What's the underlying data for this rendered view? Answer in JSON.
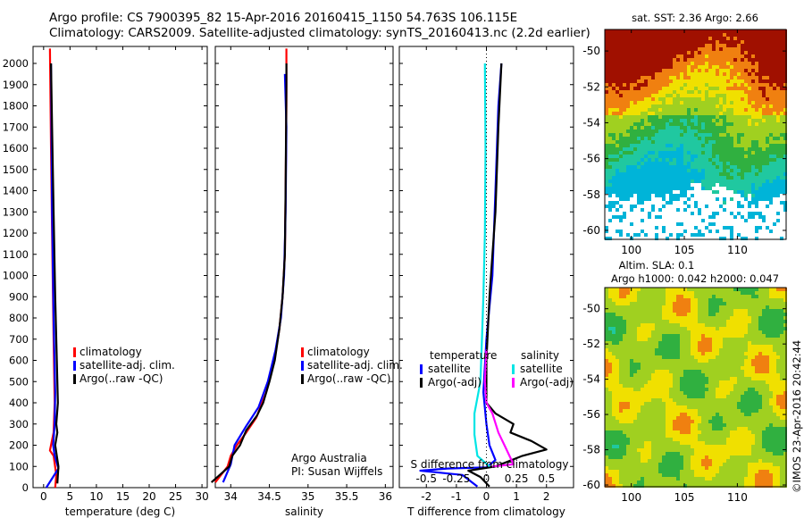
{
  "header": {
    "line1": "Argo profile: CS 7900395_82 15-Apr-2016 20160415_1150 54.763S 106.115E",
    "line2": "Climatology: CARS2009. Satellite-adjusted climatology: synTS_20160413.nc (2.2d earlier)"
  },
  "stamp": "©IMOS 23-Apr-2016 20:42:44",
  "colors": {
    "climatology": "#ff0000",
    "satellite": "#0000ff",
    "argo": "#000000",
    "satellite_s": "#00e5e5",
    "argo_s": "#ff00ff"
  },
  "chart_data": [
    {
      "type": "line",
      "xlabel": "temperature (deg C)",
      "xticks": [
        "0",
        "5",
        "10",
        "15",
        "20",
        "25",
        "30"
      ],
      "yticks": [
        "0",
        "100",
        "200",
        "300",
        "400",
        "500",
        "600",
        "700",
        "800",
        "900",
        "1000",
        "1100",
        "1200",
        "1300",
        "1400",
        "1500",
        "1600",
        "1700",
        "1800",
        "1900",
        "2000"
      ],
      "xlim": [
        -2,
        31
      ],
      "ylim": [
        2080,
        0
      ],
      "legend": [
        "climatology",
        "satellite-adj. clim.",
        "Argo(..raw -QC)"
      ],
      "series": [
        {
          "name": "climatology",
          "values": [
            [
              2.2,
              0
            ],
            [
              2.4,
              60
            ],
            [
              1.9,
              150
            ],
            [
              1.2,
              175
            ],
            [
              1.4,
              200
            ],
            [
              1.9,
              260
            ],
            [
              2.1,
              400
            ],
            [
              1.9,
              700
            ],
            [
              1.6,
              1200
            ],
            [
              1.4,
              1600
            ],
            [
              1.2,
              2070
            ]
          ]
        },
        {
          "name": "satellite-adj. clim.",
          "values": [
            [
              0.5,
              0
            ],
            [
              2.8,
              90
            ],
            [
              2.1,
              150
            ],
            [
              1.8,
              200
            ],
            [
              2.1,
              300
            ],
            [
              2.2,
              450
            ],
            [
              1.9,
              800
            ],
            [
              1.6,
              1300
            ],
            [
              1.4,
              2000
            ]
          ]
        },
        {
          "name": "Argo(..raw -QC)",
          "values": [
            [
              2.6,
              20
            ],
            [
              2.8,
              100
            ],
            [
              2.5,
              150
            ],
            [
              2.2,
              200
            ],
            [
              2.6,
              260
            ],
            [
              2.4,
              300
            ],
            [
              2.7,
              400
            ],
            [
              2.5,
              600
            ],
            [
              2.2,
              900
            ],
            [
              1.9,
              1300
            ],
            [
              1.6,
              1700
            ],
            [
              1.4,
              2000
            ]
          ]
        }
      ]
    },
    {
      "type": "line",
      "xlabel": "salinity",
      "xticks": [
        "34",
        "34.5",
        "35",
        "35.5",
        "36"
      ],
      "xlim": [
        33.8,
        36.1
      ],
      "ylim": [
        2080,
        0
      ],
      "legend": [
        "climatology",
        "satellite-adj. clim.",
        "Argo(..raw -QC)"
      ],
      "annotations": [
        "Argo Australia",
        "PI: Susan Wijffels"
      ],
      "series": [
        {
          "name": "climatology",
          "values": [
            [
              33.8,
              25
            ],
            [
              33.96,
              100
            ],
            [
              34.0,
              150
            ],
            [
              34.08,
              200
            ],
            [
              34.2,
              260
            ],
            [
              34.33,
              330
            ],
            [
              34.46,
              450
            ],
            [
              34.56,
              600
            ],
            [
              34.63,
              750
            ],
            [
              34.67,
              900
            ],
            [
              34.7,
              1100
            ],
            [
              34.71,
              1400
            ],
            [
              34.72,
              1800
            ],
            [
              34.72,
              2070
            ]
          ]
        },
        {
          "name": "satellite-adj. clim.",
          "values": [
            [
              33.9,
              25
            ],
            [
              34.0,
              110
            ],
            [
              34.05,
              200
            ],
            [
              34.2,
              290
            ],
            [
              34.36,
              380
            ],
            [
              34.48,
              500
            ],
            [
              34.58,
              650
            ],
            [
              34.65,
              800
            ],
            [
              34.69,
              1000
            ],
            [
              34.71,
              1300
            ],
            [
              34.72,
              1700
            ],
            [
              34.7,
              1950
            ]
          ]
        },
        {
          "name": "Argo(..raw -QC)",
          "values": [
            [
              33.75,
              25
            ],
            [
              33.98,
              100
            ],
            [
              34.02,
              150
            ],
            [
              34.12,
              200
            ],
            [
              34.2,
              270
            ],
            [
              34.34,
              340
            ],
            [
              34.42,
              400
            ],
            [
              34.5,
              500
            ],
            [
              34.57,
              600
            ],
            [
              34.63,
              750
            ],
            [
              34.67,
              900
            ],
            [
              34.7,
              1100
            ],
            [
              34.71,
              1400
            ],
            [
              34.72,
              1900
            ],
            [
              34.72,
              2000
            ]
          ]
        }
      ]
    },
    {
      "type": "line",
      "xlabel": "T difference from climatology",
      "xlabel2": "S difference from climatology",
      "xticks": [
        "-2",
        "-1",
        "0",
        "1",
        "2"
      ],
      "xticks2": [
        "-0.5",
        "-0.25",
        "0",
        "0.25",
        "0.5"
      ],
      "xlim": [
        -2.9,
        2.9
      ],
      "ylim": [
        2080,
        0
      ],
      "legend_titles": [
        "temperature",
        "salinity"
      ],
      "legend": [
        "satellite",
        "Argo(-adj)",
        "satellite",
        "Argo(-adj)"
      ],
      "series": [
        {
          "name": "temperature satellite",
          "values": [
            [
              -0.3,
              5
            ],
            [
              -0.8,
              60
            ],
            [
              -2.2,
              80
            ],
            [
              -1.3,
              90
            ],
            [
              0.0,
              95
            ],
            [
              0.3,
              130
            ],
            [
              0.1,
              200
            ],
            [
              0.0,
              300
            ],
            [
              -0.1,
              450
            ],
            [
              0.0,
              700
            ],
            [
              0.2,
              1000
            ],
            [
              0.3,
              1400
            ],
            [
              0.4,
              1800
            ],
            [
              0.5,
              2000
            ]
          ]
        },
        {
          "name": "temperature Argo(-adj)",
          "values": [
            [
              0.1,
              5
            ],
            [
              -0.2,
              50
            ],
            [
              -0.6,
              80
            ],
            [
              0.3,
              100
            ],
            [
              1.2,
              150
            ],
            [
              2.0,
              180
            ],
            [
              1.5,
              220
            ],
            [
              0.8,
              260
            ],
            [
              0.9,
              300
            ],
            [
              0.3,
              350
            ],
            [
              0.0,
              400
            ],
            [
              0.0,
              600
            ],
            [
              0.1,
              900
            ],
            [
              0.3,
              1300
            ],
            [
              0.4,
              1700
            ],
            [
              0.5,
              2000
            ]
          ]
        },
        {
          "name": "salinity satellite",
          "values": [
            [
              0.1,
              100
            ],
            [
              -0.3,
              150
            ],
            [
              -0.4,
              250
            ],
            [
              -0.4,
              350
            ],
            [
              -0.2,
              500
            ],
            [
              -0.15,
              700
            ],
            [
              -0.1,
              900
            ],
            [
              -0.05,
              1200
            ],
            [
              -0.03,
              1600
            ],
            [
              -0.05,
              2000
            ]
          ]
        },
        {
          "name": "salinity Argo(-adj)",
          "values": [
            [
              0.2,
              100
            ],
            [
              0.9,
              110
            ],
            [
              0.6,
              200
            ],
            [
              0.4,
              260
            ],
            [
              0.2,
              350
            ],
            [
              0.0,
              400
            ],
            [
              -0.05,
              500
            ],
            [
              0.0,
              650
            ]
          ]
        }
      ]
    },
    {
      "type": "heatmap",
      "title": "sat. SST: 2.36 Argo: 2.66",
      "xticks": [
        "100",
        "105",
        "110"
      ],
      "yticks": [
        "-50",
        "-52",
        "-54",
        "-56",
        "-58",
        "-60"
      ],
      "xlim": [
        97.5,
        114.6
      ],
      "ylim": [
        -60.5,
        -48.8
      ]
    },
    {
      "type": "heatmap",
      "title": "Altim. SLA: 0.1",
      "subtitle": "Argo h1000: 0.042 h2000: 0.047",
      "xticks": [
        "100",
        "105",
        "110"
      ],
      "yticks": [
        "-50",
        "-52",
        "-54",
        "-56",
        "-58",
        "-60"
      ],
      "xlim": [
        97.5,
        114.6
      ],
      "ylim": [
        -60.1,
        -48.8
      ]
    }
  ]
}
